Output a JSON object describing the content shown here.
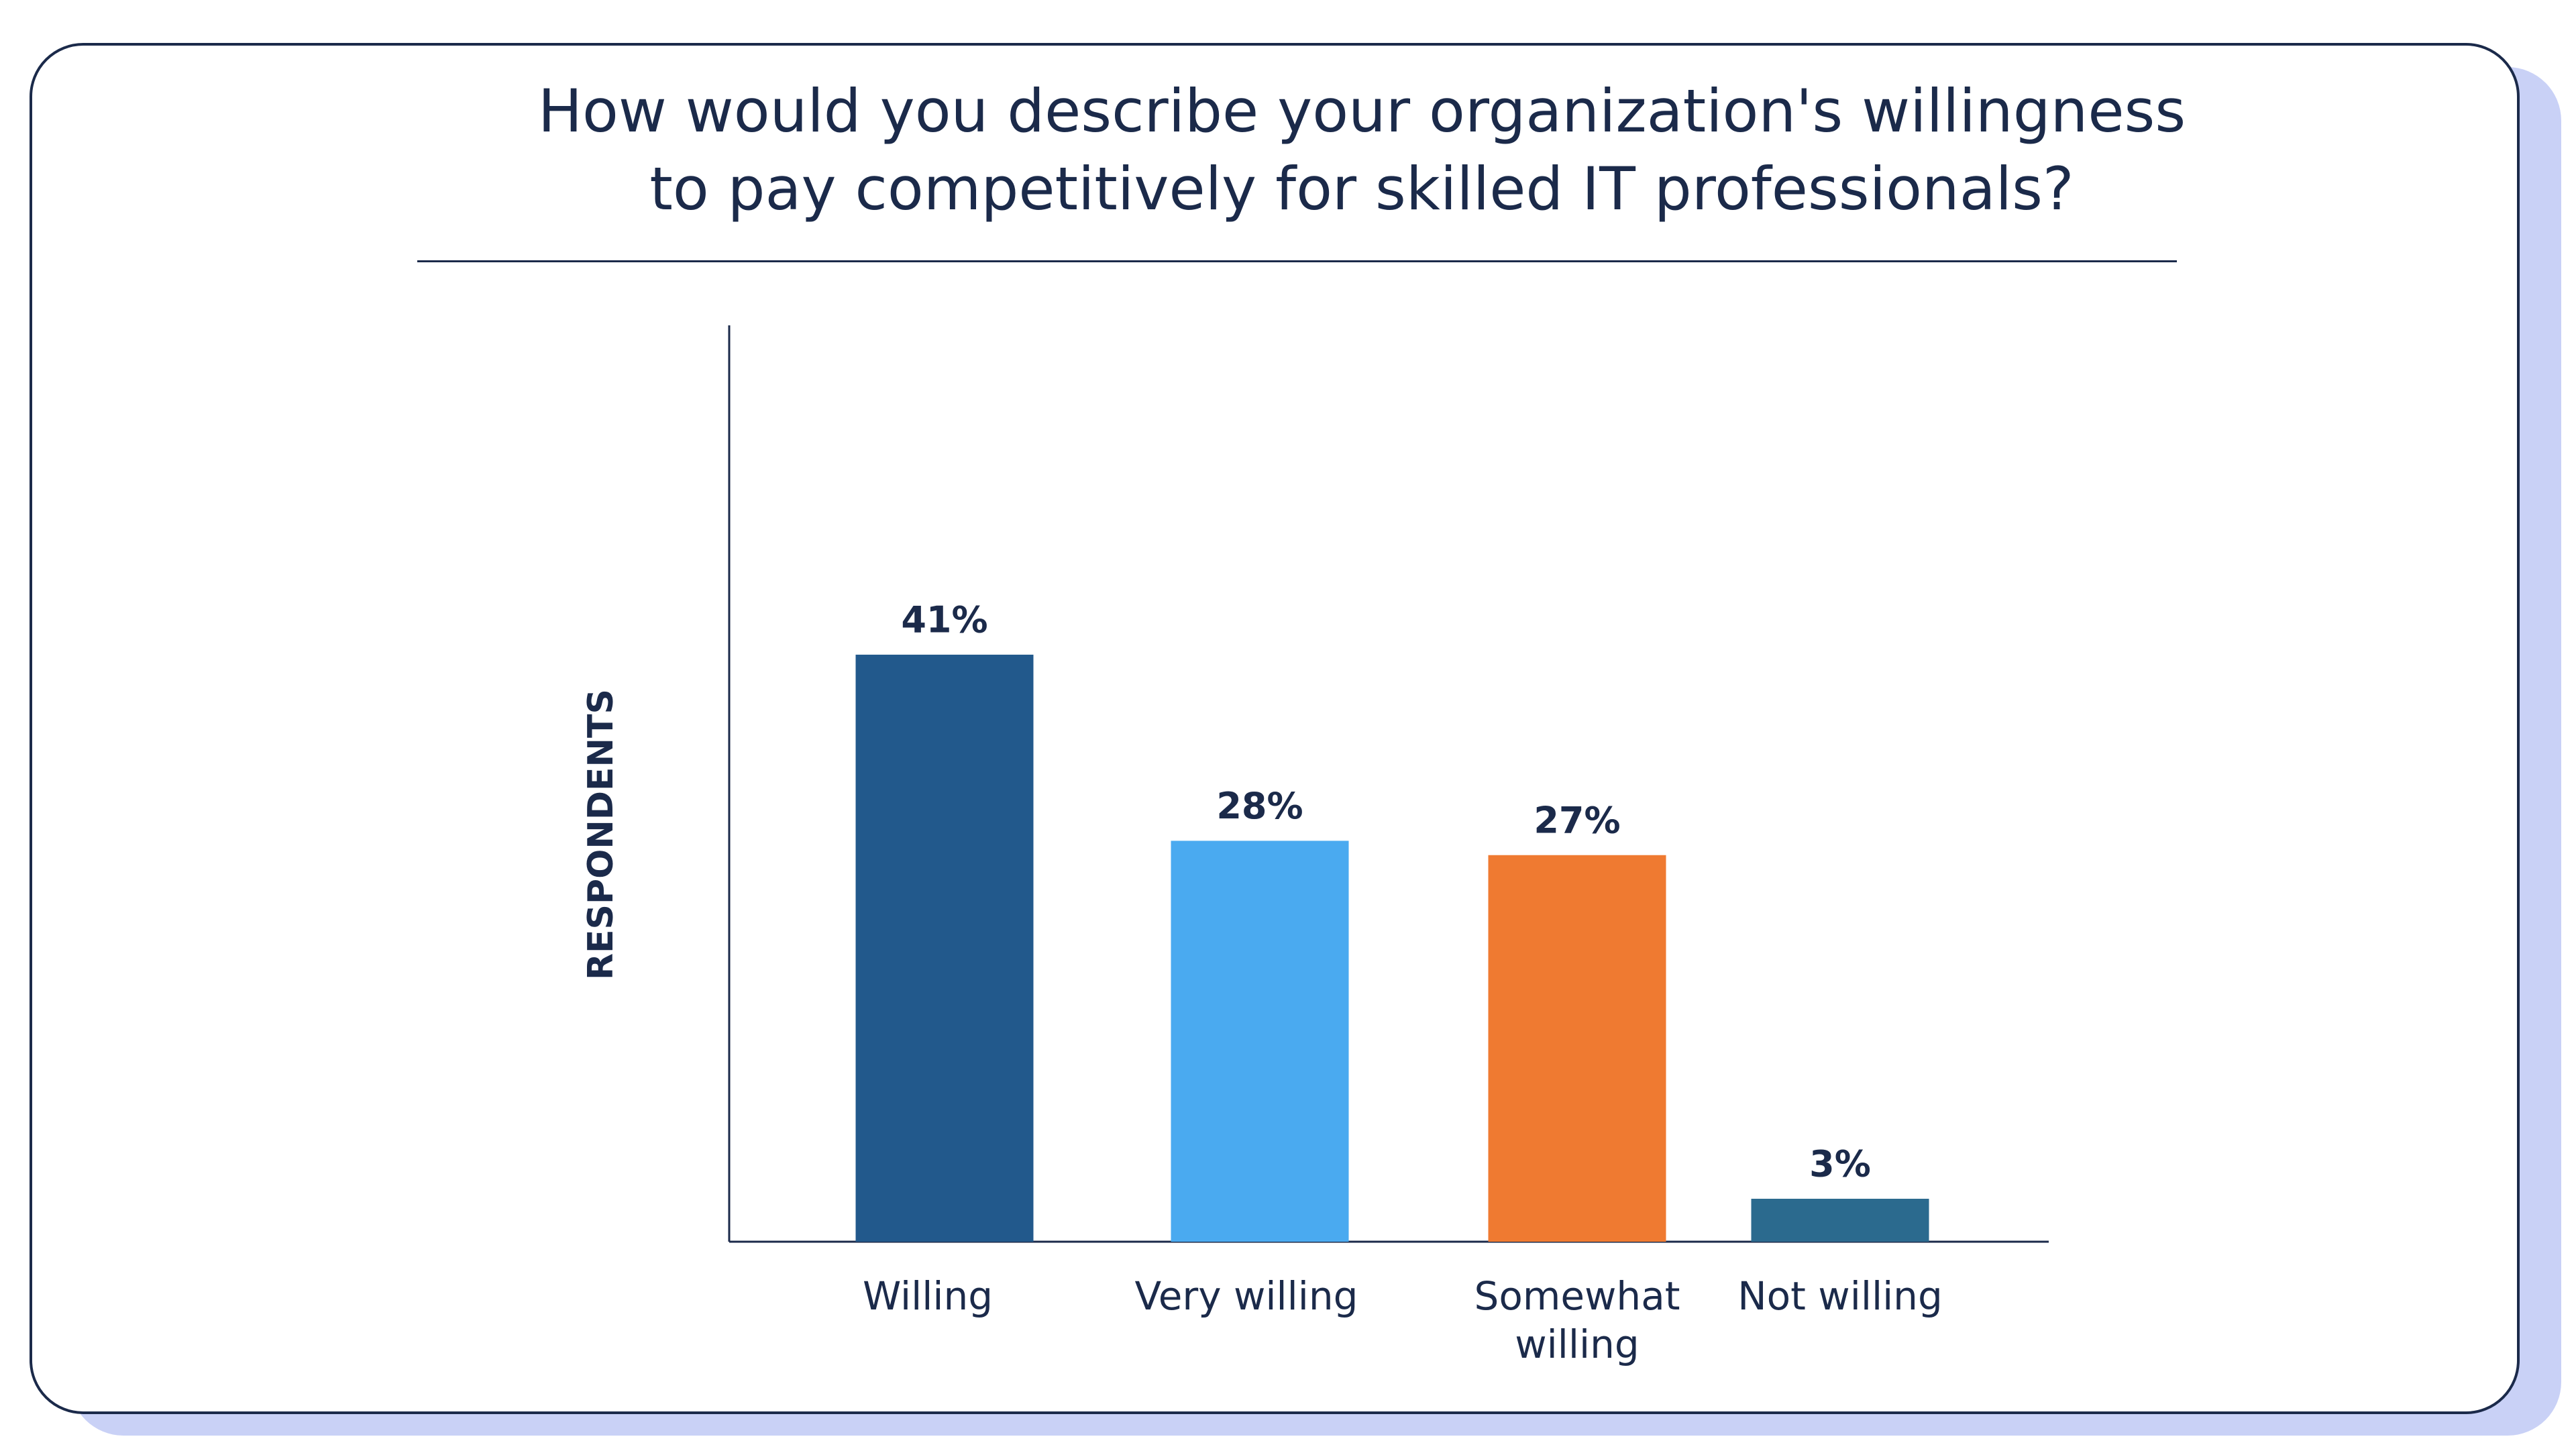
{
  "chart_data": {
    "type": "bar",
    "title": "How would you describe your organization's willingness to pay competitively for skilled IT professionals?",
    "y_label": "RESPONDENTS",
    "categories": [
      "Willing",
      "Very willing",
      "Somewhat willing",
      "Not willing"
    ],
    "values": [
      41,
      28,
      27,
      3
    ],
    "value_labels": [
      "41%",
      "28%",
      "27%",
      "3%"
    ],
    "colors": [
      "#22598c",
      "#4aaaf0",
      "#ef7a31",
      "#2b6a8e"
    ],
    "ylim": [
      0,
      64
    ]
  }
}
